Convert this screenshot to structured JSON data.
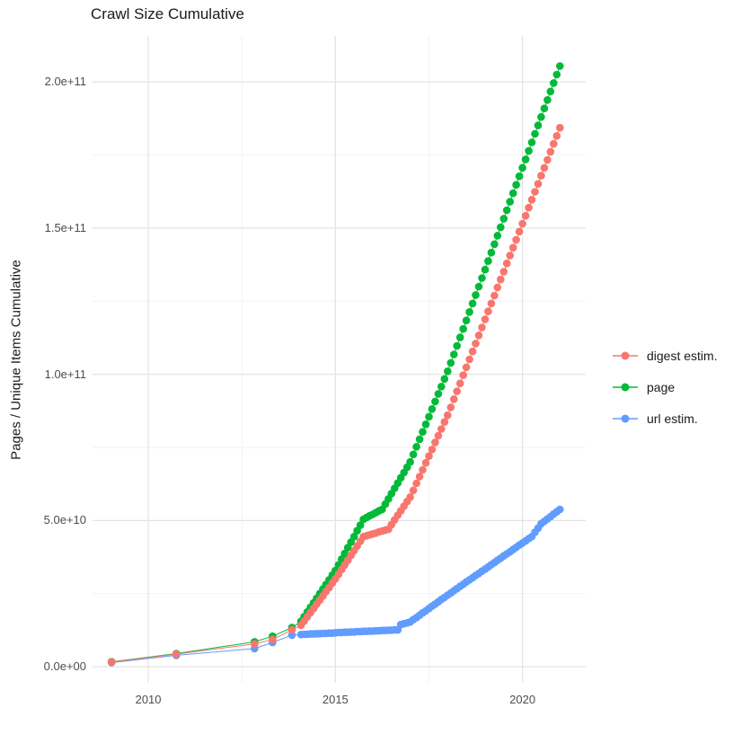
{
  "figure": {
    "title": "Crawl Size Cumulative",
    "y_axis_label": "Pages / Unique Items Cumulative"
  },
  "legend": {
    "position": "right",
    "entries": [
      {
        "label": "digest estim.",
        "color": "#F8766D"
      },
      {
        "label": "page",
        "color": "#00BA38"
      },
      {
        "label": "url estim.",
        "color": "#619CFF"
      }
    ]
  },
  "chart_data": {
    "type": "line",
    "title": "Crawl Size Cumulative",
    "xlabel": "",
    "ylabel": "Pages / Unique Items Cumulative",
    "x_unit": "year",
    "value_unit": "items, billions (1e9)",
    "grid": true,
    "grid_major_color": "#E4E4E4",
    "grid_minor_color": "#F2F2F2",
    "background_color": "#FFFFFF",
    "legend_position": "right",
    "x_domain": [
      2008.51,
      2021.69
    ],
    "y_domain_e9": [
      -5.5,
      215.7
    ],
    "x_ticks": [
      {
        "value": 2010,
        "label": "2010"
      },
      {
        "value": 2015,
        "label": "2015"
      },
      {
        "value": 2020,
        "label": "2020"
      }
    ],
    "x_minor_ticks": [
      2012.5,
      2017.5
    ],
    "y_ticks": [
      {
        "value_e9": 0,
        "label": "0.0e+00"
      },
      {
        "value_e9": 50,
        "label": "5.0e+10"
      },
      {
        "value_e9": 100,
        "label": "1.0e+11"
      },
      {
        "value_e9": 150,
        "label": "1.5e+11"
      },
      {
        "value_e9": 200,
        "label": "2.0e+11"
      }
    ],
    "y_minor_ticks_e9": [
      25,
      75,
      125,
      175
    ],
    "draw_order": [
      "url estim.",
      "page",
      "digest estim."
    ],
    "series": [
      {
        "name": "digest estim.",
        "color": "#F8766D",
        "points": [
          [
            2009.02,
            1.6
          ],
          [
            2010.75,
            4.3
          ],
          [
            2012.84,
            7.8
          ],
          [
            2013.32,
            9.3
          ],
          [
            2013.84,
            12.6
          ],
          [
            2014.083,
            14.2
          ],
          [
            2014.167,
            15.6
          ],
          [
            2014.25,
            17.1
          ],
          [
            2014.333,
            18.5
          ],
          [
            2014.417,
            19.9
          ],
          [
            2014.5,
            21.4
          ],
          [
            2014.583,
            22.8
          ],
          [
            2014.667,
            24.2
          ],
          [
            2014.75,
            25.7
          ],
          [
            2014.833,
            27.1
          ],
          [
            2014.917,
            28.6
          ],
          [
            2015.0,
            30.0
          ],
          [
            2015.083,
            31.6
          ],
          [
            2015.167,
            33.2
          ],
          [
            2015.25,
            34.8
          ],
          [
            2015.333,
            36.4
          ],
          [
            2015.417,
            38.1
          ],
          [
            2015.5,
            39.7
          ],
          [
            2015.583,
            41.3
          ],
          [
            2015.667,
            42.9
          ],
          [
            2015.75,
            44.5
          ],
          [
            2015.833,
            44.8
          ],
          [
            2015.917,
            45.1
          ],
          [
            2016.0,
            45.4
          ],
          [
            2016.083,
            45.7
          ],
          [
            2016.167,
            46.1
          ],
          [
            2016.25,
            46.4
          ],
          [
            2016.333,
            46.7
          ],
          [
            2016.417,
            47.0
          ],
          [
            2016.5,
            48.6
          ],
          [
            2016.583,
            50.2
          ],
          [
            2016.667,
            51.8
          ],
          [
            2016.75,
            53.3
          ],
          [
            2016.833,
            54.9
          ],
          [
            2016.917,
            56.5
          ],
          [
            2017.0,
            58.0
          ],
          [
            2017.083,
            60.3
          ],
          [
            2017.167,
            62.7
          ],
          [
            2017.25,
            65.0
          ],
          [
            2017.333,
            67.3
          ],
          [
            2017.417,
            69.7
          ],
          [
            2017.5,
            72.0
          ],
          [
            2017.583,
            74.3
          ],
          [
            2017.667,
            76.7
          ],
          [
            2017.75,
            79.0
          ],
          [
            2017.833,
            81.3
          ],
          [
            2017.917,
            83.7
          ],
          [
            2018.0,
            86.0
          ],
          [
            2018.083,
            88.7
          ],
          [
            2018.167,
            91.5
          ],
          [
            2018.25,
            94.2
          ],
          [
            2018.333,
            96.9
          ],
          [
            2018.417,
            99.7
          ],
          [
            2018.5,
            102.4
          ],
          [
            2018.583,
            105.1
          ],
          [
            2018.667,
            107.8
          ],
          [
            2018.75,
            110.5
          ],
          [
            2018.833,
            113.3
          ],
          [
            2018.917,
            116.0
          ],
          [
            2019.0,
            118.8
          ],
          [
            2019.083,
            121.5
          ],
          [
            2019.167,
            124.2
          ],
          [
            2019.25,
            126.9
          ],
          [
            2019.333,
            129.7
          ],
          [
            2019.417,
            132.4
          ],
          [
            2019.5,
            135.1
          ],
          [
            2019.583,
            137.9
          ],
          [
            2019.667,
            140.6
          ],
          [
            2019.75,
            143.3
          ],
          [
            2019.833,
            146.0
          ],
          [
            2019.917,
            148.8
          ],
          [
            2020.0,
            151.5
          ],
          [
            2020.083,
            154.2
          ],
          [
            2020.167,
            157.0
          ],
          [
            2020.25,
            159.7
          ],
          [
            2020.333,
            162.4
          ],
          [
            2020.417,
            165.1
          ],
          [
            2020.5,
            167.9
          ],
          [
            2020.583,
            170.6
          ],
          [
            2020.667,
            173.3
          ],
          [
            2020.75,
            176.1
          ],
          [
            2020.833,
            178.8
          ],
          [
            2020.917,
            181.5
          ],
          [
            2021.0,
            184.3
          ]
        ]
      },
      {
        "name": "page",
        "color": "#00BA38",
        "points": [
          [
            2009.02,
            1.7
          ],
          [
            2010.75,
            4.5
          ],
          [
            2012.84,
            8.5
          ],
          [
            2013.32,
            10.4
          ],
          [
            2013.84,
            13.4
          ],
          [
            2014.083,
            15.5
          ],
          [
            2014.167,
            17.1
          ],
          [
            2014.25,
            18.7
          ],
          [
            2014.333,
            20.3
          ],
          [
            2014.417,
            21.8
          ],
          [
            2014.5,
            23.4
          ],
          [
            2014.583,
            25.0
          ],
          [
            2014.667,
            26.6
          ],
          [
            2014.75,
            28.1
          ],
          [
            2014.833,
            29.7
          ],
          [
            2014.917,
            31.3
          ],
          [
            2015.0,
            32.9
          ],
          [
            2015.083,
            34.8
          ],
          [
            2015.167,
            36.8
          ],
          [
            2015.25,
            38.7
          ],
          [
            2015.333,
            40.7
          ],
          [
            2015.417,
            42.6
          ],
          [
            2015.5,
            44.5
          ],
          [
            2015.583,
            46.5
          ],
          [
            2015.667,
            48.4
          ],
          [
            2015.75,
            50.4
          ],
          [
            2015.833,
            51.0
          ],
          [
            2015.917,
            51.6
          ],
          [
            2016.0,
            52.1
          ],
          [
            2016.083,
            52.7
          ],
          [
            2016.167,
            53.3
          ],
          [
            2016.25,
            53.8
          ],
          [
            2016.333,
            55.6
          ],
          [
            2016.417,
            57.4
          ],
          [
            2016.5,
            59.2
          ],
          [
            2016.583,
            61.0
          ],
          [
            2016.667,
            62.8
          ],
          [
            2016.75,
            64.6
          ],
          [
            2016.833,
            66.4
          ],
          [
            2016.917,
            68.2
          ],
          [
            2017.0,
            70.0
          ],
          [
            2017.083,
            72.6
          ],
          [
            2017.167,
            75.2
          ],
          [
            2017.25,
            77.8
          ],
          [
            2017.333,
            80.3
          ],
          [
            2017.417,
            82.9
          ],
          [
            2017.5,
            85.5
          ],
          [
            2017.583,
            88.1
          ],
          [
            2017.667,
            90.7
          ],
          [
            2017.75,
            93.3
          ],
          [
            2017.833,
            95.8
          ],
          [
            2017.917,
            98.4
          ],
          [
            2018.0,
            101.0
          ],
          [
            2018.083,
            103.9
          ],
          [
            2018.167,
            106.8
          ],
          [
            2018.25,
            109.7
          ],
          [
            2018.333,
            112.6
          ],
          [
            2018.417,
            115.5
          ],
          [
            2018.5,
            118.4
          ],
          [
            2018.583,
            121.3
          ],
          [
            2018.667,
            124.2
          ],
          [
            2018.75,
            127.1
          ],
          [
            2018.833,
            130.0
          ],
          [
            2018.917,
            132.9
          ],
          [
            2019.0,
            135.8
          ],
          [
            2019.083,
            138.7
          ],
          [
            2019.167,
            141.6
          ],
          [
            2019.25,
            144.5
          ],
          [
            2019.333,
            147.4
          ],
          [
            2019.417,
            150.3
          ],
          [
            2019.5,
            153.2
          ],
          [
            2019.583,
            156.1
          ],
          [
            2019.667,
            159.0
          ],
          [
            2019.75,
            161.9
          ],
          [
            2019.833,
            164.8
          ],
          [
            2019.917,
            167.7
          ],
          [
            2020.0,
            170.6
          ],
          [
            2020.083,
            173.5
          ],
          [
            2020.167,
            176.4
          ],
          [
            2020.25,
            179.3
          ],
          [
            2020.333,
            182.2
          ],
          [
            2020.417,
            185.1
          ],
          [
            2020.5,
            188.0
          ],
          [
            2020.583,
            190.9
          ],
          [
            2020.667,
            193.8
          ],
          [
            2020.75,
            196.7
          ],
          [
            2020.833,
            199.6
          ],
          [
            2020.917,
            202.5
          ],
          [
            2021.0,
            205.4
          ]
        ]
      },
      {
        "name": "url estim.",
        "color": "#619CFF",
        "points": [
          [
            2009.02,
            1.4
          ],
          [
            2010.75,
            3.9
          ],
          [
            2012.84,
            6.2
          ],
          [
            2013.32,
            8.3
          ],
          [
            2013.84,
            10.8
          ],
          [
            2014.083,
            11.0
          ],
          [
            2014.167,
            11.1
          ],
          [
            2014.25,
            11.1
          ],
          [
            2014.333,
            11.2
          ],
          [
            2014.417,
            11.2
          ],
          [
            2014.5,
            11.3
          ],
          [
            2014.583,
            11.3
          ],
          [
            2014.667,
            11.4
          ],
          [
            2014.75,
            11.4
          ],
          [
            2014.833,
            11.5
          ],
          [
            2014.917,
            11.5
          ],
          [
            2015.0,
            11.6
          ],
          [
            2015.083,
            11.7
          ],
          [
            2015.167,
            11.7
          ],
          [
            2015.25,
            11.8
          ],
          [
            2015.333,
            11.8
          ],
          [
            2015.417,
            11.9
          ],
          [
            2015.5,
            11.9
          ],
          [
            2015.583,
            12.0
          ],
          [
            2015.667,
            12.0
          ],
          [
            2015.75,
            12.1
          ],
          [
            2015.833,
            12.1
          ],
          [
            2015.917,
            12.2
          ],
          [
            2016.0,
            12.2
          ],
          [
            2016.083,
            12.3
          ],
          [
            2016.167,
            12.3
          ],
          [
            2016.25,
            12.4
          ],
          [
            2016.333,
            12.4
          ],
          [
            2016.417,
            12.5
          ],
          [
            2016.5,
            12.5
          ],
          [
            2016.583,
            12.6
          ],
          [
            2016.667,
            12.6
          ],
          [
            2016.75,
            14.4
          ],
          [
            2016.833,
            14.7
          ],
          [
            2016.917,
            15.0
          ],
          [
            2017.0,
            15.3
          ],
          [
            2017.083,
            16.1
          ],
          [
            2017.167,
            16.8
          ],
          [
            2017.25,
            17.6
          ],
          [
            2017.333,
            18.4
          ],
          [
            2017.417,
            19.1
          ],
          [
            2017.5,
            19.9
          ],
          [
            2017.583,
            20.7
          ],
          [
            2017.667,
            21.4
          ],
          [
            2017.75,
            22.2
          ],
          [
            2017.833,
            23.0
          ],
          [
            2017.917,
            23.7
          ],
          [
            2018.0,
            24.5
          ],
          [
            2018.083,
            25.2
          ],
          [
            2018.167,
            26.0
          ],
          [
            2018.25,
            26.7
          ],
          [
            2018.333,
            27.5
          ],
          [
            2018.417,
            28.2
          ],
          [
            2018.5,
            29.0
          ],
          [
            2018.583,
            29.7
          ],
          [
            2018.667,
            30.4
          ],
          [
            2018.75,
            31.2
          ],
          [
            2018.833,
            31.9
          ],
          [
            2018.917,
            32.7
          ],
          [
            2019.0,
            33.4
          ],
          [
            2019.083,
            34.1
          ],
          [
            2019.167,
            34.9
          ],
          [
            2019.25,
            35.6
          ],
          [
            2019.333,
            36.4
          ],
          [
            2019.417,
            37.1
          ],
          [
            2019.5,
            37.9
          ],
          [
            2019.583,
            38.6
          ],
          [
            2019.667,
            39.3
          ],
          [
            2019.75,
            40.1
          ],
          [
            2019.833,
            40.8
          ],
          [
            2019.917,
            41.6
          ],
          [
            2020.0,
            42.3
          ],
          [
            2020.083,
            43.0
          ],
          [
            2020.167,
            43.8
          ],
          [
            2020.25,
            44.5
          ],
          [
            2020.333,
            46.0
          ],
          [
            2020.417,
            47.4
          ],
          [
            2020.5,
            48.9
          ],
          [
            2020.583,
            49.7
          ],
          [
            2020.667,
            50.5
          ],
          [
            2020.75,
            51.3
          ],
          [
            2020.833,
            52.2
          ],
          [
            2020.917,
            53.0
          ],
          [
            2021.0,
            53.8
          ]
        ]
      }
    ]
  }
}
